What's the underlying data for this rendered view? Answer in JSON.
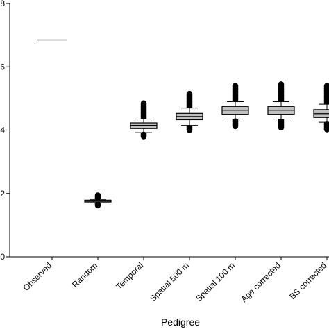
{
  "chart_data": {
    "type": "box",
    "xlabel": "Pedigree",
    "ylabel": "",
    "ylim": [
      0,
      8
    ],
    "yticks": [
      0,
      2,
      4,
      6,
      8
    ],
    "categories": [
      "Observed",
      "Random",
      "Temporal",
      "Spatial 500 m",
      "Spatial 100 m",
      "Age corrected",
      "BS corrected"
    ],
    "observed_value": 6.85,
    "boxes": [
      {
        "category": "Random",
        "whisker_low": 1.7,
        "q1": 1.73,
        "median": 1.76,
        "q3": 1.79,
        "whisker_high": 1.82,
        "outliers_low": [
          1.62,
          1.66
        ],
        "outliers_high": [
          1.86,
          1.91,
          1.94
        ]
      },
      {
        "category": "Temporal",
        "whisker_low": 3.92,
        "q1": 4.05,
        "median": 4.15,
        "q3": 4.23,
        "whisker_high": 4.35,
        "outliers_low": [
          3.8,
          3.86
        ],
        "outliers_high": [
          4.45,
          4.55,
          4.65,
          4.75,
          4.85
        ]
      },
      {
        "category": "Spatial 500 m",
        "whisker_low": 4.15,
        "q1": 4.33,
        "median": 4.43,
        "q3": 4.53,
        "whisker_high": 4.7,
        "outliers_low": [
          4.0,
          4.07
        ],
        "outliers_high": [
          4.8,
          4.9,
          5.0,
          5.1,
          5.15
        ]
      },
      {
        "category": "Spatial 100 m",
        "whisker_low": 4.35,
        "q1": 4.5,
        "median": 4.63,
        "q3": 4.75,
        "whisker_high": 4.9,
        "outliers_low": [
          4.12,
          4.2,
          4.28
        ],
        "outliers_high": [
          5.0,
          5.1,
          5.2,
          5.3,
          5.4
        ]
      },
      {
        "category": "Age corrected",
        "whisker_low": 4.35,
        "q1": 4.5,
        "median": 4.63,
        "q3": 4.75,
        "whisker_high": 4.9,
        "outliers_low": [
          4.08,
          4.16,
          4.25
        ],
        "outliers_high": [
          5.0,
          5.1,
          5.2,
          5.3,
          5.45
        ]
      },
      {
        "category": "BS corrected",
        "whisker_low": 4.25,
        "q1": 4.4,
        "median": 4.52,
        "q3": 4.65,
        "whisker_high": 4.82,
        "outliers_low": [
          4.02,
          4.1,
          4.18
        ],
        "outliers_high": [
          4.92,
          5.05,
          5.15,
          5.25,
          5.4
        ]
      }
    ],
    "box_fill": "#c0c0c0",
    "outlier_color": "#000000",
    "grid": false,
    "legend": "none"
  }
}
